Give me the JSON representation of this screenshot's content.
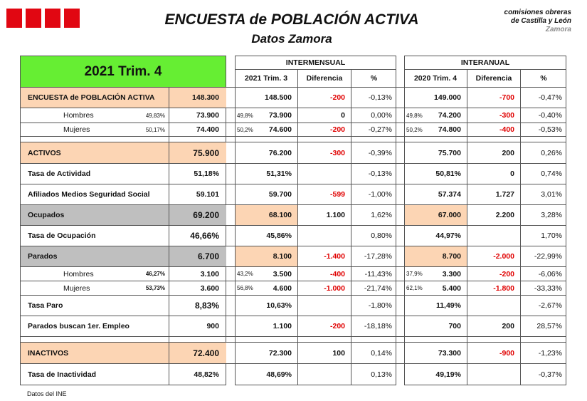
{
  "header": {
    "logo": "CCOO",
    "title": "ENCUESTA de POBLACIÓN ACTIVA",
    "subtitle": "Datos Zamora",
    "brand_line1": "comisiones obreras",
    "brand_line2": "de Castilla y León",
    "brand_line3": "Zamora"
  },
  "period": "2021   Trim. 4",
  "groups": {
    "intermensual": "INTERMENSUAL",
    "interanual": "INTERANUAL"
  },
  "cols": {
    "prev": "2021 Trim. 3",
    "diff": "Diferencia",
    "pct": "%",
    "year": "2020 Trim. 4",
    "diff2": "Diferencia",
    "pct2": "%"
  },
  "rows": {
    "epa": {
      "label": "ENCUESTA de POBLACIÓN ACTIVA",
      "val": "148.300",
      "p": "148.500",
      "pd": "-200",
      "pp": "-0,13%",
      "y": "149.000",
      "yd": "-700",
      "yp": "-0,47%"
    },
    "hombres": {
      "label": "Hombres",
      "share": "49,83%",
      "val": "73.900",
      "ps": "49,8%",
      "p": "73.900",
      "pd": "0",
      "pp": "0,00%",
      "ys": "49,8%",
      "y": "74.200",
      "yd": "-300",
      "yp": "-0,40%"
    },
    "mujeres": {
      "label": "Mujeres",
      "share": "50,17%",
      "val": "74.400",
      "ps": "50,2%",
      "p": "74.600",
      "pd": "-200",
      "pp": "-0,27%",
      "ys": "50,2%",
      "y": "74.800",
      "yd": "-400",
      "yp": "-0,53%"
    },
    "activos": {
      "label": "ACTIVOS",
      "val": "75.900",
      "p": "76.200",
      "pd": "-300",
      "pp": "-0,39%",
      "y": "75.700",
      "yd": "200",
      "yp": "0,26%"
    },
    "tasa_act": {
      "label": "Tasa de Actividad",
      "val": "51,18%",
      "p": "51,31%",
      "pp": "-0,13%",
      "y": "50,81%",
      "yd": "0",
      "yp": "0,74%"
    },
    "afiliados": {
      "label": "Afiliados Medios Seguridad Social",
      "val": "59.101",
      "p": "59.700",
      "pd": "-599",
      "pp": "-1,00%",
      "y": "57.374",
      "yd": "1.727",
      "yp": "3,01%"
    },
    "ocupados": {
      "label": "Ocupados",
      "val": "69.200",
      "p": "68.100",
      "pd": "1.100",
      "pp": "1,62%",
      "y": "67.000",
      "yd": "2.200",
      "yp": "3,28%"
    },
    "tasa_ocu": {
      "label": "Tasa de Ocupación",
      "val": "46,66%",
      "p": "45,86%",
      "pp": "0,80%",
      "y": "44,97%",
      "yp": "1,70%"
    },
    "parados": {
      "label": "Parados",
      "val": "6.700",
      "p": "8.100",
      "pd": "-1.400",
      "pp": "-17,28%",
      "y": "8.700",
      "yd": "-2.000",
      "yp": "-22,99%"
    },
    "par_h": {
      "label": "Hombres",
      "share": "46,27%",
      "val": "3.100",
      "ps": "43,2%",
      "p": "3.500",
      "pd": "-400",
      "pp": "-11,43%",
      "ys": "37,9%",
      "y": "3.300",
      "yd": "-200",
      "yp": "-6,06%"
    },
    "par_m": {
      "label": "Mujeres",
      "share": "53,73%",
      "val": "3.600",
      "ps": "56,8%",
      "p": "4.600",
      "pd": "-1.000",
      "pp": "-21,74%",
      "ys": "62,1%",
      "y": "5.400",
      "yd": "-1.800",
      "yp": "-33,33%"
    },
    "tasa_paro": {
      "label": "Tasa Paro",
      "val": "8,83%",
      "p": "10,63%",
      "pp": "-1,80%",
      "y": "11,49%",
      "yp": "-2,67%"
    },
    "primer": {
      "label": "Parados buscan 1er. Empleo",
      "val": "900",
      "p": "1.100",
      "pd": "-200",
      "pp": "-18,18%",
      "y": "700",
      "yd": "200",
      "yp": "28,57%"
    },
    "inactivos": {
      "label": "INACTIVOS",
      "val": "72.400",
      "p": "72.300",
      "pd": "100",
      "pp": "0,14%",
      "y": "73.300",
      "yd": "-900",
      "yp": "-1,23%"
    },
    "tasa_inact": {
      "label": "Tasa de Inactividad",
      "val": "48,82%",
      "p": "48,69%",
      "pp": "0,13%",
      "y": "49,19%",
      "yp": "-0,37%"
    }
  },
  "footer": "Datos del INE"
}
